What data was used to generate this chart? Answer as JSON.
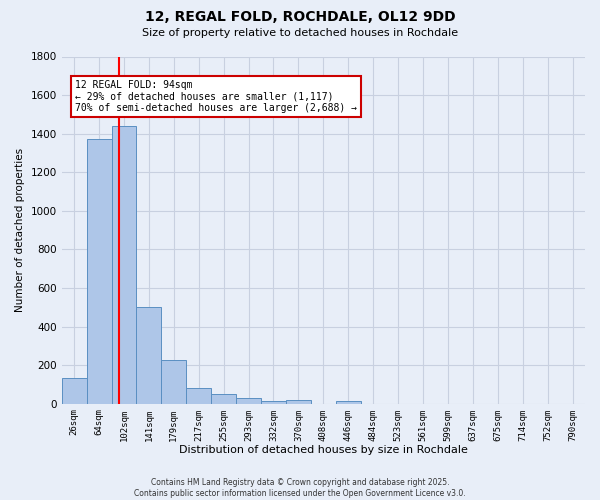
{
  "title": "12, REGAL FOLD, ROCHDALE, OL12 9DD",
  "subtitle": "Size of property relative to detached houses in Rochdale",
  "xlabel": "Distribution of detached houses by size in Rochdale",
  "ylabel": "Number of detached properties",
  "bar_labels": [
    "26sqm",
    "64sqm",
    "102sqm",
    "141sqm",
    "179sqm",
    "217sqm",
    "255sqm",
    "293sqm",
    "332sqm",
    "370sqm",
    "408sqm",
    "446sqm",
    "484sqm",
    "523sqm",
    "561sqm",
    "599sqm",
    "637sqm",
    "675sqm",
    "714sqm",
    "752sqm",
    "790sqm"
  ],
  "bar_values": [
    135,
    1370,
    1440,
    500,
    225,
    80,
    50,
    30,
    15,
    20,
    0,
    15,
    0,
    0,
    0,
    0,
    0,
    0,
    0,
    0,
    0
  ],
  "bar_color": "#aec6e8",
  "bar_edge_color": "#5a8fc2",
  "grid_color": "#c8d0e0",
  "background_color": "#e8eef8",
  "annotation_text": "12 REGAL FOLD: 94sqm\n← 29% of detached houses are smaller (1,117)\n70% of semi-detached houses are larger (2,688) →",
  "annotation_box_color": "#ffffff",
  "annotation_box_edge": "#cc0000",
  "ylim": [
    0,
    1800
  ],
  "yticks": [
    0,
    200,
    400,
    600,
    800,
    1000,
    1200,
    1400,
    1600,
    1800
  ],
  "footer1": "Contains HM Land Registry data © Crown copyright and database right 2025.",
  "footer2": "Contains public sector information licensed under the Open Government Licence v3.0."
}
